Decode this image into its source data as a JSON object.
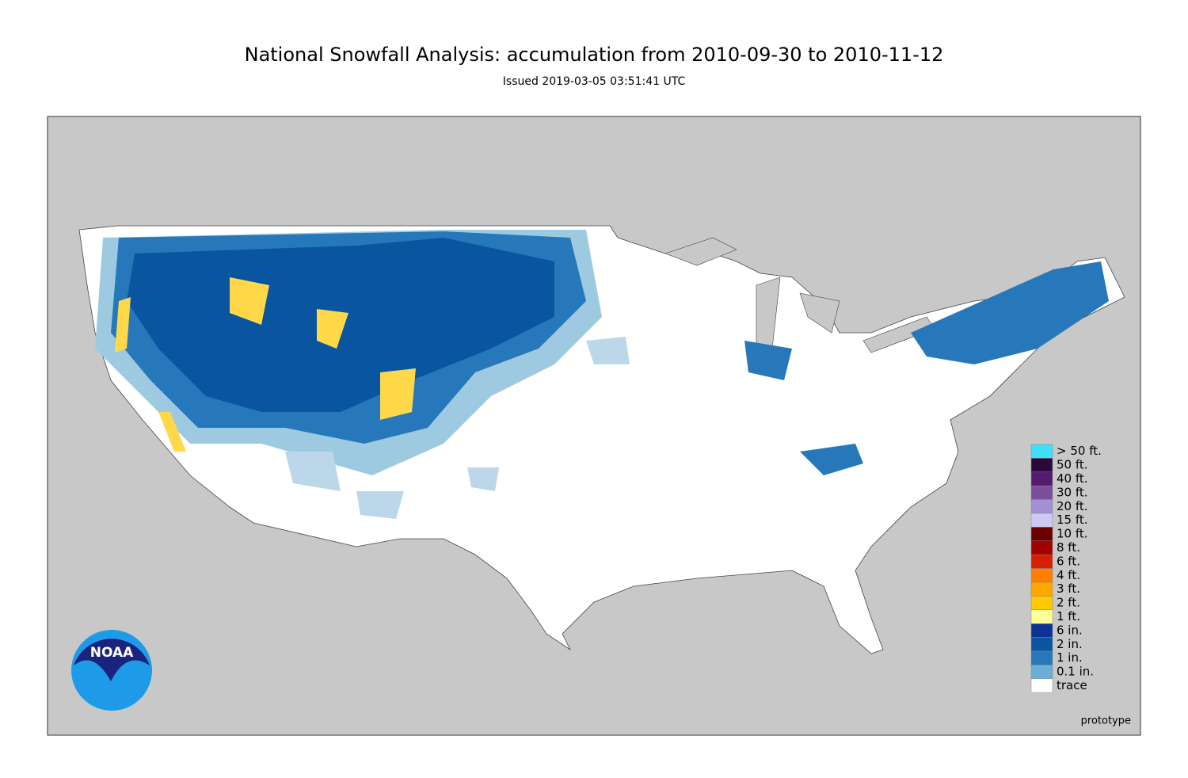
{
  "header": {
    "title": "National Snowfall Analysis: accumulation from 2010-09-30 to 2010-11-12",
    "subtitle": "Issued 2019-03-05 03:51:41 UTC"
  },
  "legend": [
    {
      "label": "> 50 ft.",
      "color": "#41e0f9"
    },
    {
      "label": "50 ft.",
      "color": "#2b0a3b"
    },
    {
      "label": "40 ft.",
      "color": "#541b6f"
    },
    {
      "label": "30 ft.",
      "color": "#7c4f9c"
    },
    {
      "label": "20 ft.",
      "color": "#a38fd3"
    },
    {
      "label": "15 ft.",
      "color": "#cdc9f3"
    },
    {
      "label": "10 ft.",
      "color": "#6a0000"
    },
    {
      "label": "8 ft.",
      "color": "#a30000"
    },
    {
      "label": "6 ft.",
      "color": "#d71f00"
    },
    {
      "label": "4 ft.",
      "color": "#ff7f00"
    },
    {
      "label": "3 ft.",
      "color": "#ffa600"
    },
    {
      "label": "2 ft.",
      "color": "#ffc800"
    },
    {
      "label": "1 ft.",
      "color": "#ffff99"
    },
    {
      "label": "6 in.",
      "color": "#0d3294"
    },
    {
      "label": "2 in.",
      "color": "#0a55a0"
    },
    {
      "label": "1 in.",
      "color": "#2678bb"
    },
    {
      "label": "0.1 in.",
      "color": "#6baed6"
    },
    {
      "label": "trace",
      "color": "#ffffff"
    }
  ],
  "logo": "NOAA",
  "footer": "prototype"
}
